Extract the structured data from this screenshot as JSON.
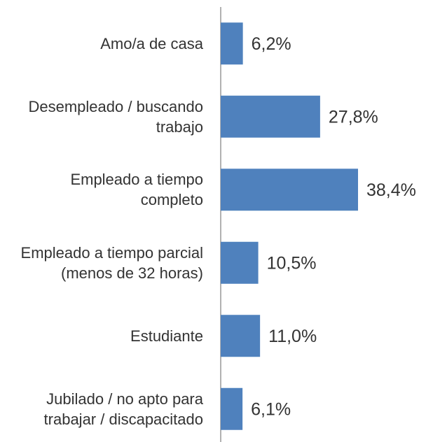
{
  "chart_data": {
    "type": "bar",
    "orientation": "horizontal",
    "categories": [
      "Amo/a de casa",
      "Desempleado / buscando trabajo",
      "Empleado a tiempo completo",
      "Empleado a tiempo parcial (menos de 32 horas)",
      "Estudiante",
      "Jubilado / no apto para trabajar / discapacitado"
    ],
    "values": [
      6.2,
      27.8,
      38.4,
      10.5,
      11.0,
      6.1
    ],
    "value_labels": [
      "6,2%",
      "27,8%",
      "38,4%",
      "10,5%",
      "11,0%",
      "6,1%"
    ],
    "color": "#4f81bd"
  }
}
